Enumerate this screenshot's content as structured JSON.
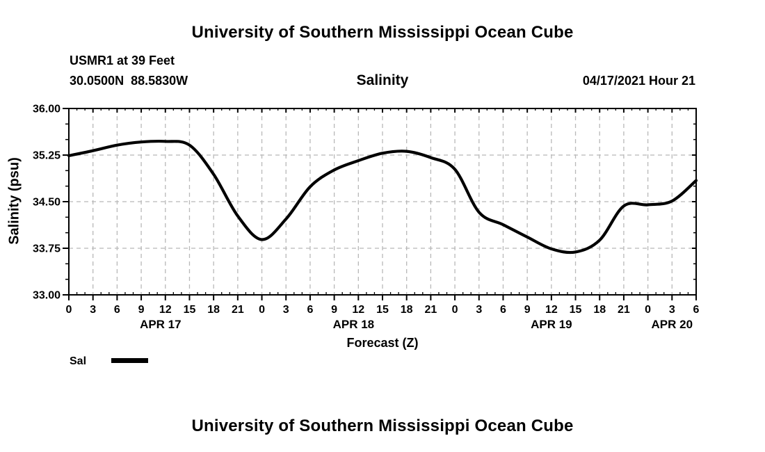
{
  "header": {
    "top_title": "University of Southern Mississippi Ocean Cube",
    "station_line1": "USMR1 at 39 Feet",
    "station_line2": "30.0500N  88.5830W",
    "plot_title": "Salinity",
    "run_datetime": "04/17/2021 Hour 21"
  },
  "footer": {
    "bottom_title": "University of Southern Mississippi Ocean Cube"
  },
  "legend": {
    "items": [
      {
        "label": "Sal",
        "color": "#000000"
      }
    ]
  },
  "colors": {
    "background": "#ffffff",
    "text": "#000000",
    "curve": "#000000",
    "grid": "#b8b8b8",
    "frame": "#000000"
  },
  "chart_data": {
    "type": "line",
    "title": "Salinity",
    "xlabel": "Forecast (Z)",
    "ylabel": "Salinity (psu)",
    "ylim": [
      33.0,
      36.0
    ],
    "y_major_ticks": [
      33.0,
      33.75,
      34.5,
      35.25,
      36.0
    ],
    "y_tick_labels": [
      "33.00",
      "33.75",
      "34.50",
      "35.25",
      "36.00"
    ],
    "y_minor_step": 0.25,
    "xlim_hours": [
      0,
      78
    ],
    "x_major_tick_step_hours": 3,
    "x_minor_tick_step_hours": 1,
    "x_tick_labels": [
      "0",
      "3",
      "6",
      "9",
      "12",
      "15",
      "18",
      "21",
      "0",
      "3",
      "6",
      "9",
      "12",
      "15",
      "18",
      "21",
      "0",
      "3",
      "6",
      "9",
      "12",
      "15",
      "18",
      "21",
      "0",
      "3",
      "6"
    ],
    "day_labels": [
      {
        "label": "APR 17",
        "hour": 11.4
      },
      {
        "label": "APR 18",
        "hour": 35.4
      },
      {
        "label": "APR 19",
        "hour": 60
      },
      {
        "label": "APR 20",
        "hour": 75
      }
    ],
    "grid": {
      "show": true,
      "style": "dashed"
    },
    "legend_position": "bottom-left",
    "series": [
      {
        "name": "Sal",
        "color": "#000000",
        "x_hours": [
          0,
          3,
          6,
          9,
          12,
          15,
          18,
          21,
          24,
          27,
          30,
          33,
          36,
          39,
          42,
          45,
          48,
          51,
          54,
          57,
          60,
          63,
          66,
          69,
          72,
          75,
          78
        ],
        "values": [
          35.24,
          35.32,
          35.41,
          35.46,
          35.47,
          35.41,
          34.94,
          34.27,
          33.89,
          34.22,
          34.74,
          35.01,
          35.16,
          35.28,
          35.31,
          35.21,
          35.02,
          34.33,
          34.13,
          33.93,
          33.74,
          33.69,
          33.88,
          34.43,
          34.45,
          34.51,
          34.84
        ]
      }
    ]
  }
}
